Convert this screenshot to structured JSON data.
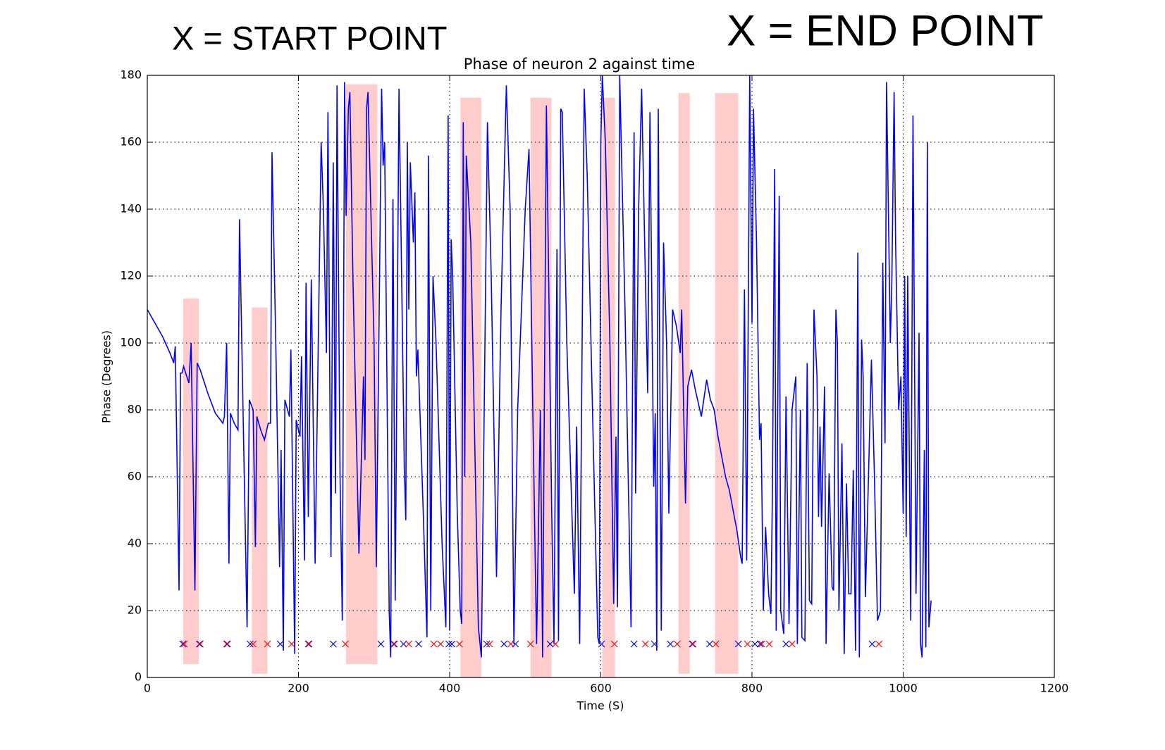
{
  "chart_data": {
    "type": "line",
    "title": "Phase of neuron 2 against time",
    "xlabel": "Time (S)",
    "ylabel": "Phase (Degrees)",
    "annotations": [
      {
        "text": "X = START POINT",
        "color": "#0000ff"
      },
      {
        "text": "X = END POINT",
        "color": "#ff0000"
      }
    ],
    "xlim": [
      0,
      1200
    ],
    "xticks": [
      0,
      200,
      400,
      600,
      800,
      1000,
      1200
    ],
    "ylim": [
      0,
      180
    ],
    "yticks": [
      0,
      20,
      40,
      60,
      80,
      100,
      120,
      140,
      160,
      180
    ],
    "grid": true,
    "color": "#0000ff",
    "x": [
      0,
      10,
      20,
      30,
      35,
      37,
      42,
      44,
      46,
      48,
      55,
      58,
      63,
      66,
      70,
      80,
      90,
      100,
      102,
      105,
      108,
      110,
      115,
      120,
      122,
      132,
      135,
      140,
      143,
      145,
      150,
      155,
      160,
      163,
      165,
      170,
      175,
      177,
      180,
      182,
      188,
      190,
      195,
      197,
      202,
      204,
      208,
      210,
      213,
      217,
      222,
      230,
      233,
      237,
      239,
      243,
      246,
      249,
      251,
      255,
      258,
      261,
      263,
      266,
      268,
      272,
      280,
      286,
      288,
      290,
      292,
      300,
      303,
      310,
      312,
      314,
      320,
      322,
      325,
      328,
      333,
      340,
      342,
      344,
      346,
      348,
      352,
      354,
      356,
      358,
      365,
      370,
      372,
      375,
      378,
      382,
      390,
      395,
      398,
      400,
      402,
      404,
      410,
      414,
      416,
      418,
      420,
      422,
      428,
      438,
      442,
      450,
      455,
      462,
      468,
      475,
      480,
      485,
      490,
      500,
      505,
      510,
      515,
      520,
      523,
      528,
      535,
      538,
      542,
      544,
      547,
      549,
      555,
      565,
      568,
      572,
      578,
      582,
      590,
      596,
      598,
      600,
      602,
      606,
      612,
      617,
      620,
      622,
      625,
      632,
      640,
      644,
      646,
      650,
      654,
      658,
      662,
      665,
      670,
      672,
      674,
      676,
      680,
      683,
      687,
      690,
      695,
      700,
      705,
      707,
      712,
      715,
      720,
      725,
      733,
      740,
      745,
      750,
      755,
      760,
      765,
      770,
      775,
      780,
      785,
      787,
      790,
      793,
      797,
      800,
      802,
      806,
      810,
      812,
      815,
      818,
      822,
      825,
      827,
      830,
      832,
      836,
      838,
      842,
      845,
      849,
      853,
      858,
      860,
      864,
      866,
      870,
      873,
      876,
      879,
      882,
      886,
      888,
      890,
      892,
      896,
      898,
      902,
      906,
      908,
      911,
      913,
      915,
      919,
      922,
      925,
      928,
      931,
      934,
      937,
      940,
      942,
      945,
      947,
      950,
      953,
      958,
      962,
      966,
      970,
      973,
      976,
      978,
      983,
      985,
      988,
      990,
      994,
      997,
      1000,
      1002,
      1004,
      1006,
      1010,
      1013,
      1017,
      1021,
      1023,
      1025,
      1028,
      1030,
      1032,
      1034,
      1037
    ],
    "values": [
      110,
      106,
      102,
      97,
      94,
      99,
      26,
      91,
      91,
      93,
      88,
      100,
      26,
      94,
      92,
      85,
      79,
      76,
      78,
      100,
      34,
      79,
      76,
      74,
      137,
      15,
      83,
      80,
      39,
      78,
      74,
      71,
      76,
      76,
      157,
      100,
      33,
      68,
      8,
      83,
      78,
      98,
      7,
      77,
      72,
      96,
      35,
      118,
      48,
      119,
      34,
      160,
      140,
      97,
      169,
      36,
      154,
      55,
      177,
      60,
      17,
      178,
      138,
      170,
      175,
      120,
      37,
      90,
      65,
      170,
      175,
      100,
      33,
      176,
      153,
      160,
      20,
      6,
      143,
      23,
      176,
      63,
      47,
      160,
      110,
      154,
      130,
      145,
      90,
      98,
      50,
      12,
      156,
      20,
      120,
      100,
      40,
      15,
      168,
      14,
      131,
      120,
      50,
      20,
      16,
      166,
      60,
      156,
      130,
      15,
      6,
      166,
      120,
      30,
      110,
      177,
      140,
      10,
      80,
      140,
      158,
      80,
      10,
      80,
      6,
      171,
      50,
      10,
      128,
      11,
      170,
      169,
      100,
      25,
      75,
      10,
      176,
      150,
      70,
      12,
      10,
      160,
      180,
      160,
      100,
      22,
      72,
      21,
      180,
      110,
      15,
      163,
      55,
      140,
      176,
      130,
      85,
      169,
      57,
      79,
      8,
      170,
      14,
      130,
      100,
      49,
      110,
      105,
      97,
      110,
      52,
      87,
      92,
      86,
      78,
      89,
      83,
      80,
      72,
      66,
      60,
      56,
      50,
      44,
      36,
      34,
      116,
      35,
      180,
      106,
      170,
      130,
      71,
      76,
      20,
      45,
      25,
      19,
      55,
      152,
      14,
      144,
      20,
      13,
      84,
      16,
      80,
      90,
      10,
      80,
      12,
      11,
      94,
      23,
      22,
      110,
      90,
      48,
      75,
      45,
      87,
      10,
      61,
      27,
      26,
      110,
      100,
      20,
      70,
      7,
      58,
      25,
      25,
      62,
      8,
      127,
      6,
      101,
      90,
      24,
      50,
      95,
      60,
      17,
      20,
      124,
      70,
      178,
      100,
      118,
      175,
      130,
      80,
      90,
      49,
      120,
      42,
      120,
      17,
      168,
      25,
      103,
      10,
      6,
      68,
      9,
      160,
      15,
      23
    ],
    "span_color": "#ffcccc",
    "spans": [
      {
        "x": [
          47.4,
          68.2
        ],
        "y": [
          4,
          113.3
        ]
      },
      {
        "x": [
          138.4,
          159.1
        ],
        "y": [
          1.1,
          110.6
        ]
      },
      {
        "x": [
          262.9,
          304.4
        ],
        "y": [
          4,
          177.3
        ]
      },
      {
        "x": [
          414.2,
          441.8
        ],
        "y": [
          0,
          173.3
        ]
      },
      {
        "x": [
          507,
          534.7
        ],
        "y": [
          0,
          173.3
        ]
      },
      {
        "x": [
          602,
          618.8
        ],
        "y": [
          0,
          173.3
        ]
      },
      {
        "x": [
          702.8,
          717.6
        ],
        "y": [
          1.1,
          174.7
        ]
      },
      {
        "x": [
          751.2,
          781.9
        ],
        "y": [
          1.1,
          174.7
        ]
      }
    ],
    "marker_y": 10,
    "markers": [
      {
        "color": "#0000ff",
        "x": [
          47,
          69,
          106,
          136,
          176,
          213,
          246,
          309,
          326,
          339,
          359,
          399,
          403,
          449,
          472,
          487,
          533,
          601,
          644,
          671,
          692,
          721,
          744,
          782,
          804,
          811,
          845,
          959
        ]
      },
      {
        "color": "#ff0000",
        "x": [
          49,
          70,
          105,
          140,
          159,
          191,
          214,
          262,
          327,
          346,
          379,
          388,
          413,
          453,
          481,
          507,
          540,
          618,
          659,
          701,
          722,
          752,
          794,
          813,
          823,
          853,
          968
        ]
      }
    ]
  }
}
